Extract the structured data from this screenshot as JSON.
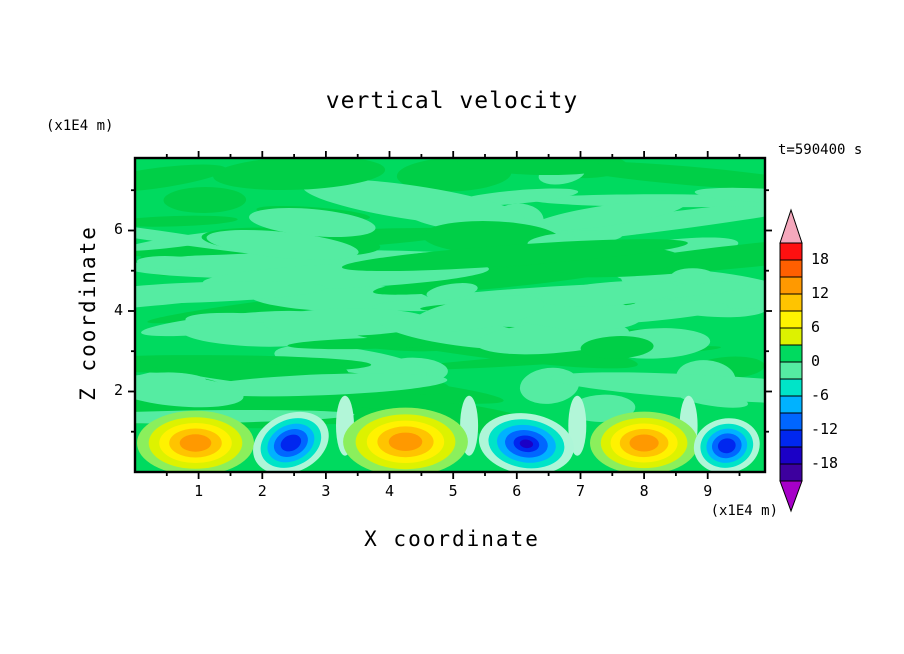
{
  "title": "vertical velocity",
  "time_label": "t=590400 s",
  "axes": {
    "x_label": "X coordinate",
    "x_unit": "(x1E4 m)",
    "y_label": "Z coordinate",
    "y_unit": "(x1E4 m)",
    "x_ticks": [
      1,
      2,
      3,
      4,
      5,
      6,
      7,
      8,
      9
    ],
    "y_ticks": [
      2,
      4,
      6
    ]
  },
  "chart_data": {
    "type": "heatmap",
    "subtype": "filled_contour",
    "title": "vertical velocity",
    "xlabel": "X coordinate (x1E4 m)",
    "ylabel": "Z coordinate (x1E4 m)",
    "time": "t=590400 s",
    "x_range": [
      0,
      9.9
    ],
    "z_range": [
      0,
      7.8
    ],
    "contour_interval": 3,
    "levels": [
      -21,
      -18,
      -15,
      -12,
      -9,
      -6,
      -3,
      0,
      3,
      6,
      9,
      12,
      15,
      18,
      21
    ],
    "colorbar": {
      "labels": [
        "18",
        "12",
        "6",
        "0",
        "-6",
        "-12",
        "-18"
      ],
      "over_color": "#f5a8bc",
      "under_color": "#a600c8",
      "box_colors_top_to_bottom": [
        "#fe1010",
        "#ff5f00",
        "#ff9900",
        "#ffc400",
        "#fff200",
        "#ddf200",
        "#00da5f",
        "#55eca2",
        "#00e4c8",
        "#00b2ff",
        "#0066ff",
        "#0027ef",
        "#1b00c6",
        "#3d009e"
      ]
    },
    "field_colors": {
      "base": "#00da5f",
      "light": "#55eca2",
      "dark": "#00cf47",
      "streak": "#b2f6d8"
    },
    "background_field": "interior values mostly between -3 and +3 (mottled green)",
    "cell_ring_colors": {
      "updraft": [
        "#8bef5c",
        "#ddf200",
        "#fff200",
        "#ffc400",
        "#ff9900",
        "#ff7000"
      ],
      "downdraft": [
        "#aef6d8",
        "#00e4c8",
        "#00b2ff",
        "#0066ff",
        "#0027ef",
        "#1b00c6"
      ]
    },
    "ring_scale": [
      1,
      0.8,
      0.62,
      0.45,
      0.27,
      0.14
    ],
    "cells": [
      {
        "type": "updraft",
        "x": 0.95,
        "z": 0.72,
        "rx": 0.92,
        "rz": 0.8,
        "tilt": 0,
        "peak": 13
      },
      {
        "type": "downdraft",
        "x": 2.45,
        "z": 0.72,
        "rx": 0.62,
        "rz": 0.72,
        "tilt": -25,
        "peak": -14
      },
      {
        "type": "updraft",
        "x": 4.25,
        "z": 0.75,
        "rx": 0.98,
        "rz": 0.85,
        "tilt": 0,
        "peak": 14
      },
      {
        "type": "downdraft",
        "x": 6.15,
        "z": 0.7,
        "rx": 0.75,
        "rz": 0.75,
        "tilt": 8,
        "peak": -15
      },
      {
        "type": "updraft",
        "x": 8.0,
        "z": 0.72,
        "rx": 0.85,
        "rz": 0.78,
        "tilt": 0,
        "peak": 13
      },
      {
        "type": "downdraft",
        "x": 9.3,
        "z": 0.65,
        "rx": 0.52,
        "rz": 0.68,
        "tilt": -10,
        "peak": -14
      }
    ],
    "streak_x_positions": [
      3.3,
      5.25,
      6.95,
      8.7
    ]
  }
}
